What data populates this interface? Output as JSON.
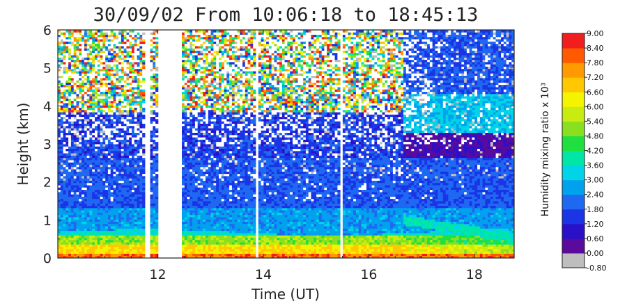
{
  "chart_data": {
    "type": "heatmap",
    "title": "30/09/02 From 10:06:18 to 18:45:13",
    "xlabel": "Time (UT)",
    "ylabel": "Height (km)",
    "xlim": [
      10.105,
      18.754
    ],
    "ylim": [
      0,
      6
    ],
    "x_ticks": [
      "12",
      "14",
      "16",
      "18"
    ],
    "x_tick_values": [
      12,
      14,
      16,
      18
    ],
    "y_ticks": [
      "0",
      "1",
      "2",
      "3",
      "4",
      "5",
      "6"
    ],
    "y_tick_values": [
      0,
      1,
      2,
      3,
      4,
      5,
      6
    ],
    "colorbar": {
      "label": "Humidity mixing ratio x 10³",
      "levels": [
        "-0.80",
        "0.00",
        "0.60",
        "1.20",
        "1.80",
        "2.40",
        "3.00",
        "3.60",
        "4.20",
        "4.80",
        "5.40",
        "6.00",
        "6.60",
        "7.20",
        "7.80",
        "8.40",
        "9.00"
      ],
      "level_values": [
        -0.8,
        0.0,
        0.6,
        1.2,
        1.8,
        2.4,
        3.0,
        3.6,
        4.2,
        4.8,
        5.4,
        6.0,
        6.6,
        7.2,
        7.8,
        8.4,
        9.0
      ],
      "colors": [
        "#bebebe",
        "#5a0a9c",
        "#2a10c8",
        "#1a34e6",
        "#1e68f2",
        "#00a2ee",
        "#00d4e6",
        "#00e6a6",
        "#20e040",
        "#8ae020",
        "#c8ec10",
        "#f4f400",
        "#ffc800",
        "#ff9a00",
        "#ff5a00",
        "#f01e1e"
      ]
    },
    "data_gaps_ut": [
      [
        11.76,
        11.86
      ],
      [
        12.0,
        12.44
      ],
      [
        13.84,
        13.9
      ],
      [
        15.44,
        15.5
      ]
    ],
    "approx_profile": {
      "description_levels_km": [
        0.15,
        0.45,
        0.8,
        1.3,
        2.0,
        3.0,
        4.0,
        5.5
      ],
      "typical_values": [
        6.6,
        4.8,
        2.4,
        1.8,
        1.5,
        1.2,
        1.8,
        3.0
      ]
    }
  }
}
